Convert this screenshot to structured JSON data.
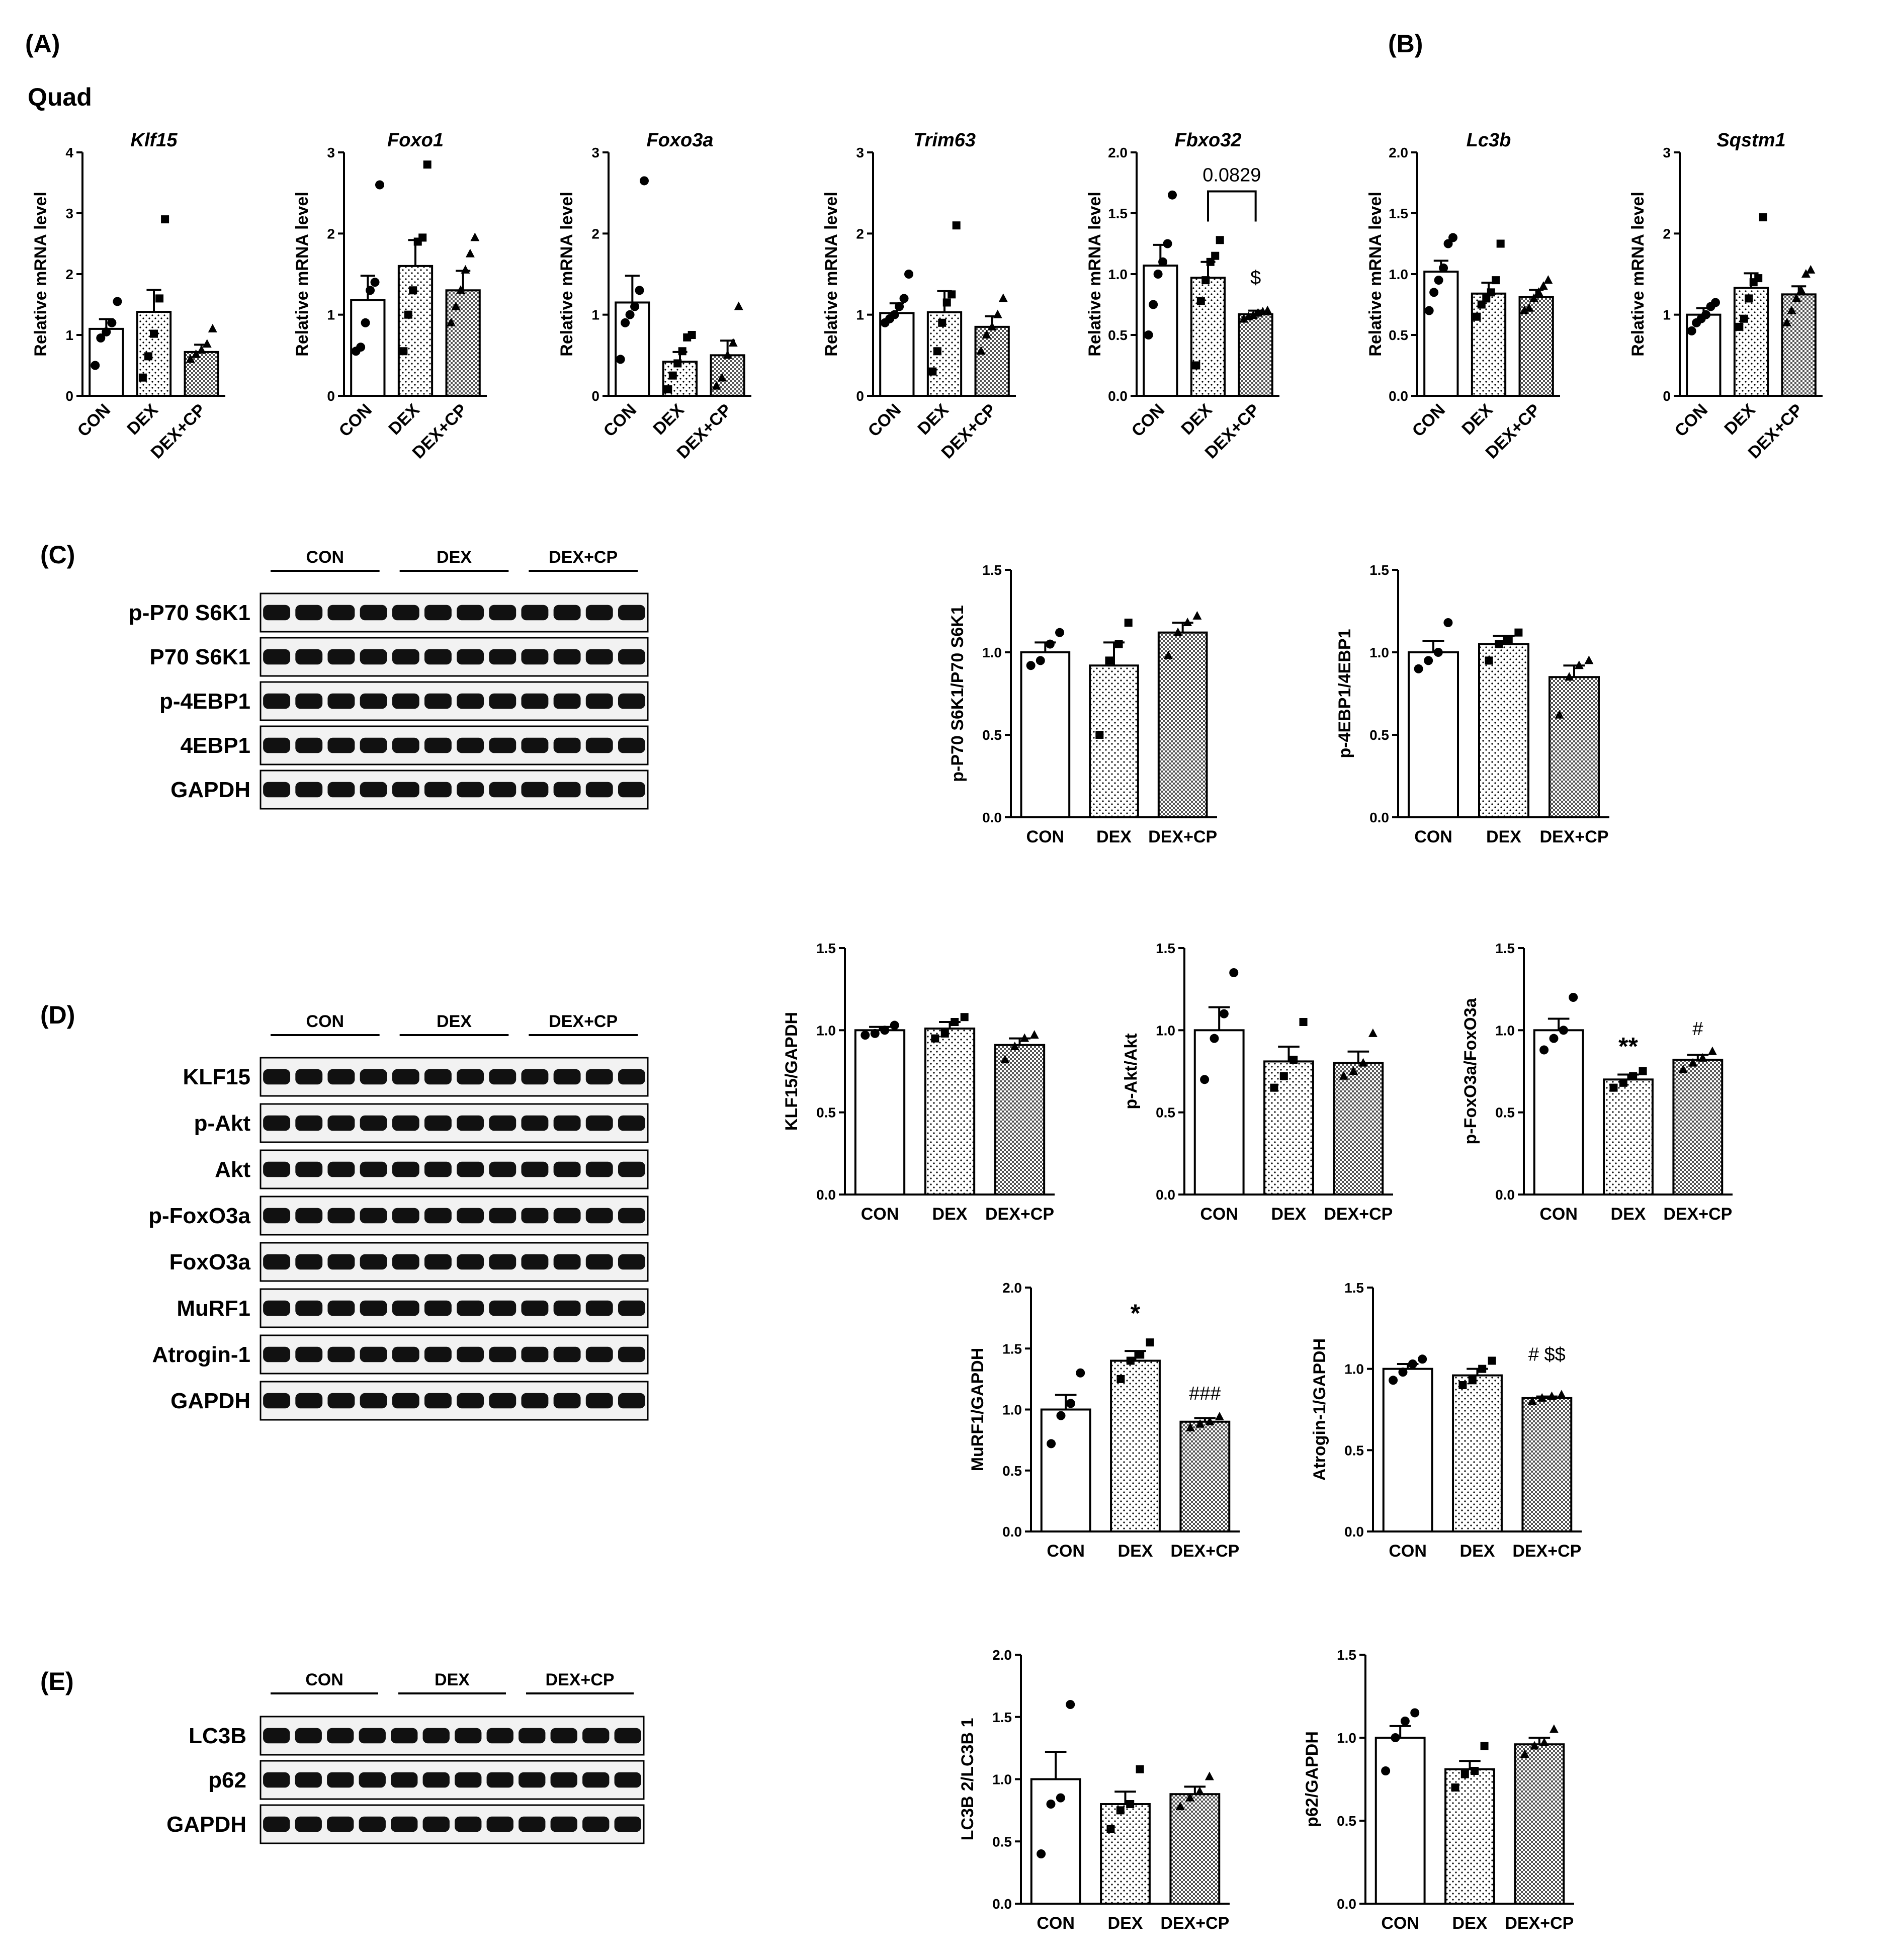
{
  "figure": {
    "panels": [
      {
        "id": "A",
        "label": "(A)"
      },
      {
        "id": "B",
        "label": "(B)"
      },
      {
        "id": "C",
        "label": "(C)"
      },
      {
        "id": "D",
        "label": "(D)"
      },
      {
        "id": "E",
        "label": "(E)"
      }
    ],
    "tissue_label": "Quad"
  },
  "colors": {
    "CON": "#ffffff",
    "DEX": "#ececec",
    "DEX+CP": "#a8a8a8",
    "line": "#000000"
  },
  "blots": [
    {
      "id": "C",
      "groups": [
        "CON",
        "DEX",
        "DEX+CP"
      ],
      "lanes_per_group": 4,
      "proteins": [
        "p-P70 S6K1",
        "P70 S6K1",
        "p-4EBP1",
        "4EBP1",
        "GAPDH"
      ]
    },
    {
      "id": "D",
      "groups": [
        "CON",
        "DEX",
        "DEX+CP"
      ],
      "lanes_per_group": 4,
      "proteins": [
        "KLF15",
        "p-Akt",
        "Akt",
        "p-FoxO3a",
        "FoxO3a",
        "MuRF1",
        "Atrogin-1",
        "GAPDH"
      ]
    },
    {
      "id": "E",
      "groups": [
        "CON",
        "DEX",
        "DEX+CP"
      ],
      "lanes_per_group": 4,
      "proteins": [
        "LC3B",
        "p62",
        "GAPDH"
      ]
    }
  ],
  "chart_data": [
    {
      "panel": "A",
      "type": "bar",
      "title": "Klf15",
      "ylabel": "Relative mRNA level",
      "categories": [
        "CON",
        "DEX",
        "DEX+CP"
      ],
      "ylim": [
        0,
        4
      ],
      "yticks": [
        "0",
        "1",
        "2",
        "3",
        "4"
      ],
      "values": [
        1.1,
        1.38,
        0.72
      ],
      "sem": [
        0.16,
        0.36,
        0.12
      ],
      "points": [
        [
          0.5,
          0.95,
          1.05,
          1.2,
          1.55
        ],
        [
          0.3,
          0.65,
          1.02,
          1.6,
          2.9
        ],
        [
          0.6,
          0.68,
          0.75,
          0.85,
          1.1
        ]
      ],
      "annotations": []
    },
    {
      "panel": "A",
      "type": "bar",
      "title": "Foxo1",
      "ylabel": "Relative mRNA level",
      "categories": [
        "CON",
        "DEX",
        "DEX+CP"
      ],
      "ylim": [
        0,
        3
      ],
      "yticks": [
        "0",
        "1",
        "2",
        "3"
      ],
      "values": [
        1.18,
        1.6,
        1.3
      ],
      "sem": [
        0.3,
        0.32,
        0.24
      ],
      "points": [
        [
          0.55,
          0.6,
          0.9,
          1.3,
          1.4,
          2.6
        ],
        [
          0.55,
          1.0,
          1.3,
          1.9,
          1.95,
          2.85
        ],
        [
          0.9,
          1.1,
          1.3,
          1.55,
          1.75,
          1.95
        ]
      ],
      "annotations": []
    },
    {
      "panel": "A",
      "type": "bar",
      "title": "Foxo3a",
      "ylabel": "Relative mRNA level",
      "categories": [
        "CON",
        "DEX",
        "DEX+CP"
      ],
      "ylim": [
        0,
        3
      ],
      "yticks": [
        "0",
        "1",
        "2",
        "3"
      ],
      "values": [
        1.15,
        0.42,
        0.5
      ],
      "sem": [
        0.33,
        0.12,
        0.18
      ],
      "points": [
        [
          0.45,
          0.9,
          1.0,
          1.1,
          1.3,
          2.65
        ],
        [
          0.08,
          0.25,
          0.4,
          0.55,
          0.72,
          0.75
        ],
        [
          0.12,
          0.22,
          0.5,
          0.65,
          1.1
        ]
      ],
      "annotations": []
    },
    {
      "panel": "A",
      "type": "bar",
      "title": "Trim63",
      "ylabel": "Relative mRNA level",
      "categories": [
        "CON",
        "DEX",
        "DEX+CP"
      ],
      "ylim": [
        0,
        3
      ],
      "yticks": [
        "0",
        "1",
        "2",
        "3"
      ],
      "values": [
        1.02,
        1.03,
        0.85
      ],
      "sem": [
        0.12,
        0.26,
        0.13
      ],
      "points": [
        [
          0.9,
          0.95,
          1.0,
          1.1,
          1.2,
          1.5
        ],
        [
          0.3,
          0.55,
          0.9,
          1.15,
          1.25,
          2.1
        ],
        [
          0.55,
          0.75,
          0.85,
          1.0,
          1.2
        ]
      ],
      "annotations": []
    },
    {
      "panel": "A",
      "type": "bar",
      "title": "Fbxo32",
      "ylabel": "Relative mRNA level",
      "categories": [
        "CON",
        "DEX",
        "DEX+CP"
      ],
      "ylim": [
        0,
        2
      ],
      "yticks": [
        "0.0",
        "0.5",
        "1.0",
        "1.5",
        "2.0"
      ],
      "values": [
        1.07,
        0.97,
        0.67
      ],
      "sem": [
        0.17,
        0.13,
        0.03
      ],
      "points": [
        [
          0.5,
          0.75,
          1.0,
          1.1,
          1.25,
          1.65
        ],
        [
          0.25,
          0.78,
          0.95,
          1.1,
          1.15,
          1.28
        ],
        [
          0.63,
          0.65,
          0.66,
          0.68,
          0.69,
          0.7
        ]
      ],
      "annotations": [
        {
          "kind": "bracket",
          "from": 1,
          "to": 2,
          "y": 1.68,
          "text": "0.0829"
        },
        {
          "kind": "text",
          "cat": 2,
          "y": 0.92,
          "text": "$"
        }
      ]
    },
    {
      "panel": "B",
      "type": "bar",
      "title": "Lc3b",
      "ylabel": "Relative mRNA level",
      "categories": [
        "CON",
        "DEX",
        "DEX+CP"
      ],
      "ylim": [
        0,
        2
      ],
      "yticks": [
        "0.0",
        "0.5",
        "1.0",
        "1.5",
        "2.0"
      ],
      "values": [
        1.02,
        0.84,
        0.81
      ],
      "sem": [
        0.09,
        0.09,
        0.06
      ],
      "points": [
        [
          0.7,
          0.85,
          0.95,
          1.05,
          1.25,
          1.3
        ],
        [
          0.65,
          0.75,
          0.8,
          0.85,
          0.95,
          1.25
        ],
        [
          0.7,
          0.72,
          0.8,
          0.85,
          0.9,
          0.95
        ]
      ],
      "annotations": []
    },
    {
      "panel": "B",
      "type": "bar",
      "title": "Sqstm1",
      "ylabel": "Relative mRNA level",
      "categories": [
        "CON",
        "DEX",
        "DEX+CP"
      ],
      "ylim": [
        0,
        3
      ],
      "yticks": [
        "0",
        "1",
        "2",
        "3"
      ],
      "values": [
        1.0,
        1.33,
        1.25
      ],
      "sem": [
        0.08,
        0.18,
        0.1
      ],
      "points": [
        [
          0.8,
          0.9,
          0.95,
          1.0,
          1.1,
          1.15
        ],
        [
          0.85,
          0.95,
          1.2,
          1.4,
          1.45,
          2.2
        ],
        [
          0.9,
          1.05,
          1.2,
          1.3,
          1.5,
          1.55
        ]
      ],
      "annotations": []
    },
    {
      "panel": "C",
      "type": "bar",
      "title": "",
      "ylabel": "p-P70 S6K1/P70 S6K1",
      "categories": [
        "CON",
        "DEX",
        "DEX+CP"
      ],
      "ylim": [
        0,
        1.5
      ],
      "yticks": [
        "0.0",
        "0.5",
        "1.0",
        "1.5"
      ],
      "values": [
        1.0,
        0.92,
        1.12
      ],
      "sem": [
        0.06,
        0.14,
        0.06
      ],
      "points": [
        [
          0.92,
          0.95,
          1.05,
          1.12
        ],
        [
          0.5,
          0.95,
          1.05,
          1.18
        ],
        [
          0.98,
          1.12,
          1.18,
          1.22
        ]
      ],
      "annotations": []
    },
    {
      "panel": "C",
      "type": "bar",
      "title": "",
      "ylabel": "p-4EBP1/4EBP1",
      "categories": [
        "CON",
        "DEX",
        "DEX+CP"
      ],
      "ylim": [
        0,
        1.5
      ],
      "yticks": [
        "0.0",
        "0.5",
        "1.0",
        "1.5"
      ],
      "values": [
        1.0,
        1.05,
        0.85
      ],
      "sem": [
        0.07,
        0.05,
        0.07
      ],
      "points": [
        [
          0.9,
          0.95,
          1.0,
          1.18
        ],
        [
          0.95,
          1.05,
          1.08,
          1.12
        ],
        [
          0.62,
          0.85,
          0.92,
          0.95
        ]
      ],
      "annotations": []
    },
    {
      "panel": "D",
      "type": "bar",
      "title": "",
      "ylabel": "KLF15/GAPDH",
      "categories": [
        "CON",
        "DEX",
        "DEX+CP"
      ],
      "ylim": [
        0,
        1.5
      ],
      "yticks": [
        "0.0",
        "0.5",
        "1.0",
        "1.5"
      ],
      "values": [
        1.0,
        1.01,
        0.91
      ],
      "sem": [
        0.02,
        0.04,
        0.04
      ],
      "points": [
        [
          0.97,
          0.98,
          1.0,
          1.03
        ],
        [
          0.95,
          0.98,
          1.05,
          1.08
        ],
        [
          0.82,
          0.9,
          0.95,
          0.97
        ]
      ],
      "annotations": []
    },
    {
      "panel": "D",
      "type": "bar",
      "title": "",
      "ylabel": "p-Akt/Akt",
      "categories": [
        "CON",
        "DEX",
        "DEX+CP"
      ],
      "ylim": [
        0,
        1.5
      ],
      "yticks": [
        "0.0",
        "0.5",
        "1.0",
        "1.5"
      ],
      "values": [
        1.0,
        0.81,
        0.8
      ],
      "sem": [
        0.14,
        0.09,
        0.07
      ],
      "points": [
        [
          0.7,
          0.95,
          1.1,
          1.35
        ],
        [
          0.65,
          0.72,
          0.82,
          1.05
        ],
        [
          0.72,
          0.75,
          0.8,
          0.98
        ]
      ],
      "annotations": []
    },
    {
      "panel": "D",
      "type": "bar",
      "title": "",
      "ylabel": "p-FoxO3a/FoxO3a",
      "categories": [
        "CON",
        "DEX",
        "DEX+CP"
      ],
      "ylim": [
        0,
        1.5
      ],
      "yticks": [
        "0.0",
        "0.5",
        "1.0",
        "1.5"
      ],
      "values": [
        1.0,
        0.7,
        0.82
      ],
      "sem": [
        0.07,
        0.03,
        0.03
      ],
      "points": [
        [
          0.88,
          0.95,
          1.0,
          1.2
        ],
        [
          0.65,
          0.68,
          0.72,
          0.75
        ],
        [
          0.76,
          0.8,
          0.83,
          0.87
        ]
      ],
      "annotations": [
        {
          "kind": "textbold",
          "cat": 1,
          "y": 0.85,
          "text": "**"
        },
        {
          "kind": "text",
          "cat": 2,
          "y": 0.97,
          "text": "#"
        }
      ]
    },
    {
      "panel": "D",
      "type": "bar",
      "title": "",
      "ylabel": "MuRF1/GAPDH",
      "categories": [
        "CON",
        "DEX",
        "DEX+CP"
      ],
      "ylim": [
        0,
        2
      ],
      "yticks": [
        "0.0",
        "0.5",
        "1.0",
        "1.5",
        "2.0"
      ],
      "values": [
        1.0,
        1.4,
        0.9
      ],
      "sem": [
        0.12,
        0.08,
        0.03
      ],
      "points": [
        [
          0.72,
          0.95,
          1.05,
          1.3
        ],
        [
          1.25,
          1.4,
          1.45,
          1.55
        ],
        [
          0.85,
          0.88,
          0.9,
          0.94
        ]
      ],
      "annotations": [
        {
          "kind": "textbold",
          "cat": 1,
          "y": 1.72,
          "text": "*"
        },
        {
          "kind": "text",
          "cat": 2,
          "y": 1.08,
          "text": "###"
        }
      ]
    },
    {
      "panel": "D",
      "type": "bar",
      "title": "",
      "ylabel": "Atrogin-1/GAPDH",
      "categories": [
        "CON",
        "DEX",
        "DEX+CP"
      ],
      "ylim": [
        0,
        1.5
      ],
      "yticks": [
        "0.0",
        "0.5",
        "1.0",
        "1.5"
      ],
      "values": [
        1.0,
        0.96,
        0.82
      ],
      "sem": [
        0.03,
        0.04,
        0.01
      ],
      "points": [
        [
          0.93,
          0.98,
          1.03,
          1.06
        ],
        [
          0.9,
          0.93,
          1.0,
          1.05
        ],
        [
          0.8,
          0.82,
          0.83,
          0.84
        ]
      ],
      "annotations": [
        {
          "kind": "text",
          "cat": 2,
          "y": 1.05,
          "text": "# $$"
        }
      ]
    },
    {
      "panel": "E",
      "type": "bar",
      "title": "",
      "ylabel": "LC3B 2/LC3B 1",
      "categories": [
        "CON",
        "DEX",
        "DEX+CP"
      ],
      "ylim": [
        0,
        2
      ],
      "yticks": [
        "0.0",
        "0.5",
        "1.0",
        "1.5",
        "2.0"
      ],
      "values": [
        1.0,
        0.8,
        0.88
      ],
      "sem": [
        0.22,
        0.1,
        0.06
      ],
      "points": [
        [
          0.4,
          0.8,
          0.85,
          1.6
        ],
        [
          0.6,
          0.75,
          0.8,
          1.08
        ],
        [
          0.78,
          0.85,
          0.9,
          1.02
        ]
      ],
      "annotations": []
    },
    {
      "panel": "E",
      "type": "bar",
      "title": "",
      "ylabel": "p62/GAPDH",
      "categories": [
        "CON",
        "DEX",
        "DEX+CP"
      ],
      "ylim": [
        0,
        1.5
      ],
      "yticks": [
        "0.0",
        "0.5",
        "1.0",
        "1.5"
      ],
      "values": [
        1.0,
        0.81,
        0.96
      ],
      "sem": [
        0.07,
        0.05,
        0.04
      ],
      "points": [
        [
          0.8,
          1.0,
          1.1,
          1.15
        ],
        [
          0.7,
          0.78,
          0.8,
          0.95
        ],
        [
          0.9,
          0.95,
          0.97,
          1.05
        ]
      ],
      "annotations": []
    }
  ]
}
